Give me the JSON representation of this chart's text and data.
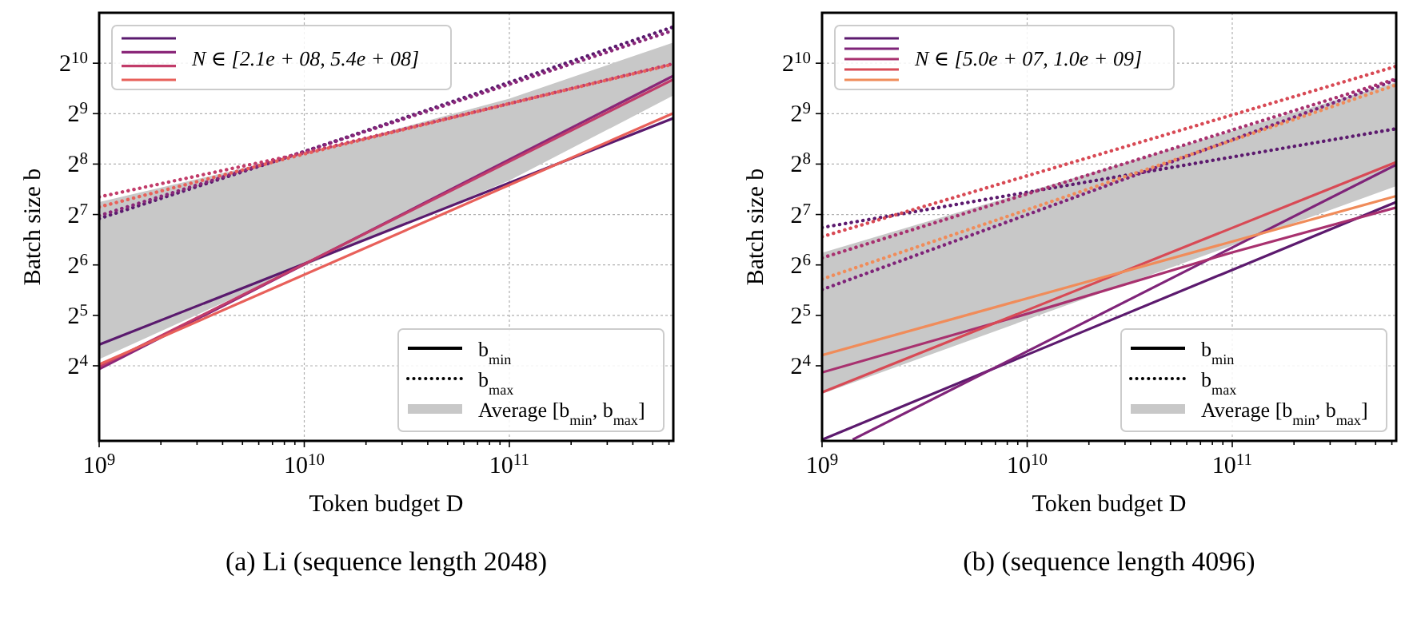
{
  "chart_data": [
    {
      "type": "line",
      "title": "(a) Li (sequence length 2048)",
      "xlabel": "Token budget D",
      "ylabel": "Batch size b",
      "legend": "bottom right",
      "grid": true,
      "log": "xy",
      "xlim": [
        1000000000.0,
        630000000000.0
      ],
      "ylim": [
        5.7,
        2048
      ],
      "xticks": [
        {
          "value": 1000000000.0,
          "label": "10$^{9}$"
        },
        {
          "value": 2000000000.0,
          "label": null
        },
        {
          "value": 3000000000.0,
          "label": null
        },
        {
          "value": 4000000000.0,
          "label": null
        },
        {
          "value": 5000000000.0,
          "label": null
        },
        {
          "value": 6000000000.0,
          "label": null
        },
        {
          "value": 7000000000.0,
          "label": null
        },
        {
          "value": 8000000000.0,
          "label": null
        },
        {
          "value": 9000000000.0,
          "label": null
        },
        {
          "value": 10000000000.0,
          "label": "10$^{10}$"
        },
        {
          "value": 20000000000.0,
          "label": null
        },
        {
          "value": 30000000000.0,
          "label": null
        },
        {
          "value": 40000000000.0,
          "label": null
        },
        {
          "value": 50000000000.0,
          "label": null
        },
        {
          "value": 60000000000.0,
          "label": null
        },
        {
          "value": 70000000000.0,
          "label": null
        },
        {
          "value": 80000000000.0,
          "label": null
        },
        {
          "value": 90000000000.0,
          "label": null
        },
        {
          "value": 100000000000.0,
          "label": "10$^{11}$"
        },
        {
          "value": 200000000000.0,
          "label": null
        },
        {
          "value": 300000000000.0,
          "label": null
        },
        {
          "value": 400000000000.0,
          "label": null
        },
        {
          "value": 500000000000.0,
          "label": null
        },
        {
          "value": 600000000000.0,
          "label": null
        }
      ],
      "yticks": [
        {
          "value": 16,
          "label": "2$^{4}$"
        },
        {
          "value": 32,
          "label": "2$^{5}$"
        },
        {
          "value": 64,
          "label": "2$^{6}$"
        },
        {
          "value": 128,
          "label": "2$^{7}$"
        },
        {
          "value": 256,
          "label": "2$^{8}$"
        },
        {
          "value": 512,
          "label": "2$^{9}$"
        },
        {
          "value": 1024,
          "label": "2$^{10}$"
        }
      ],
      "annotations": [
        "b$_{min}$",
        "b$_{max}$",
        "N ∈ [2.1e + 08, 5.4e + 08]"
      ],
      "series": [
        {
          "name": "Average [b$_{min}$, b$_{max}$]",
          "color": "#c8c8c8",
          "x": [
            1000000000.0,
            10000000000.0,
            100000000000.0,
            630000000000.0
          ],
          "values": [
            null,
            null,
            null,
            null
          ],
          "lower": [
            17.5,
            63.1,
            204,
            657
          ],
          "upper": [
            152,
            294,
            630,
            1361
          ]
        },
        {
          "color": "#5a1a6e",
          "line_style": "solid",
          "x": [
            1000000000.0,
            630000000000.0
          ],
          "values": [
            21.4,
            481
          ]
        },
        {
          "color": "#8a2779",
          "line_style": "solid",
          "x": [
            1000000000.0,
            630000000000.0
          ],
          "values": [
            15.3,
            861
          ]
        },
        {
          "color": "#c23c6a",
          "line_style": "solid",
          "x": [
            1000000000.0,
            630000000000.0
          ],
          "values": [
            15.8,
            820
          ]
        },
        {
          "color": "#e8605a",
          "line_style": "solid",
          "x": [
            1000000000.0,
            630000000000.0
          ],
          "values": [
            16.3,
            515
          ]
        },
        {
          "color": "#5a1a6e",
          "line_style": "dotted",
          "x": [
            1000000000.0,
            10000000000.0,
            630000000000.0
          ],
          "values": [
            121,
            304,
            1687
          ]
        },
        {
          "color": "#8a2779",
          "line_style": "dotted",
          "x": [
            1000000000.0,
            10000000000.0,
            630000000000.0
          ],
          "values": [
            126,
            304,
            1607
          ]
        },
        {
          "color": "#c23c6a",
          "line_style": "dotted",
          "x": [
            1000000000.0,
            10000000000.0,
            100000000000.0,
            630000000000.0
          ],
          "values": [
            163,
            298,
            588,
            1017
          ]
        },
        {
          "color": "#e8605a",
          "line_style": "dotted",
          "x": [
            1000000000.0,
            10000000000.0,
            100000000000.0,
            630000000000.0
          ],
          "values": [
            142,
            294,
            588,
            1010
          ]
        }
      ]
    },
    {
      "type": "line",
      "title": "(b) (sequence length 4096)",
      "xlabel": "Token budget D",
      "ylabel": "Batch size b",
      "legend": "bottom right",
      "grid": true,
      "log": "xy",
      "xlim": [
        1000000000.0,
        630000000000.0
      ],
      "ylim": [
        5.7,
        2048
      ],
      "xticks": [
        {
          "value": 1000000000.0,
          "label": "10$^{9}$"
        },
        {
          "value": 2000000000.0,
          "label": null
        },
        {
          "value": 3000000000.0,
          "label": null
        },
        {
          "value": 4000000000.0,
          "label": null
        },
        {
          "value": 5000000000.0,
          "label": null
        },
        {
          "value": 6000000000.0,
          "label": null
        },
        {
          "value": 7000000000.0,
          "label": null
        },
        {
          "value": 8000000000.0,
          "label": null
        },
        {
          "value": 9000000000.0,
          "label": null
        },
        {
          "value": 10000000000.0,
          "label": "10$^{10}$"
        },
        {
          "value": 20000000000.0,
          "label": null
        },
        {
          "value": 30000000000.0,
          "label": null
        },
        {
          "value": 40000000000.0,
          "label": null
        },
        {
          "value": 50000000000.0,
          "label": null
        },
        {
          "value": 60000000000.0,
          "label": null
        },
        {
          "value": 70000000000.0,
          "label": null
        },
        {
          "value": 80000000000.0,
          "label": null
        },
        {
          "value": 90000000000.0,
          "label": null
        },
        {
          "value": 100000000000.0,
          "label": "10$^{11}$"
        },
        {
          "value": 200000000000.0,
          "label": null
        },
        {
          "value": 300000000000.0,
          "label": null
        },
        {
          "value": 400000000000.0,
          "label": null
        },
        {
          "value": 500000000000.0,
          "label": null
        },
        {
          "value": 600000000000.0,
          "label": null
        }
      ],
      "yticks": [
        {
          "value": 16,
          "label": "2$^{4}$"
        },
        {
          "value": 32,
          "label": "2$^{5}$"
        },
        {
          "value": 64,
          "label": "2$^{6}$"
        },
        {
          "value": 128,
          "label": "2$^{7}$"
        },
        {
          "value": 256,
          "label": "2$^{8}$"
        },
        {
          "value": 512,
          "label": "2$^{9}$"
        },
        {
          "value": 1024,
          "label": "2$^{10}$"
        }
      ],
      "annotations": [
        "b$_{min}$",
        "b$_{max}$",
        "N ∈ [5.0e + 07, 1.0e + 09]"
      ],
      "series": [
        {
          "name": "Average [b$_{min}$, b$_{max}$]",
          "color": "#c8c8c8",
          "x": [
            1000000000.0,
            630000000000.0
          ],
          "values": [
            null,
            null
          ],
          "lower": [
            10.9,
            189
          ],
          "upper": [
            75.6,
            787
          ]
        },
        {
          "color": "#5c1a6e",
          "line_style": "solid",
          "x": [
            1000000000.0,
            630000000000.0
          ],
          "values": [
            5.8,
            152
          ]
        },
        {
          "color": "#7f2479",
          "line_style": "solid",
          "x": [
            1410000000.0,
            630000000000.0
          ],
          "values": [
            5.8,
            254
          ]
        },
        {
          "color": "#a8316f",
          "line_style": "solid",
          "x": [
            1000000000.0,
            10000000000.0,
            100000000000.0,
            630000000000.0
          ],
          "values": [
            14.6,
            32.7,
            76.1,
            141
          ]
        },
        {
          "color": "#d84a55",
          "line_style": "solid",
          "x": [
            1000000000.0,
            630000000000.0
          ],
          "values": [
            11.1,
            263
          ]
        },
        {
          "color": "#f08c5a",
          "line_style": "solid",
          "x": [
            1000000000.0,
            630000000000.0
          ],
          "values": [
            18.5,
            165
          ]
        },
        {
          "color": "#5c1a6e",
          "line_style": "dotted",
          "x": [
            1000000000.0,
            630000000000.0
          ],
          "values": [
            107,
            416
          ]
        },
        {
          "color": "#7f2479",
          "line_style": "dotted",
          "x": [
            1000000000.0,
            630000000000.0
          ],
          "values": [
            45.6,
            815
          ]
        },
        {
          "color": "#a8316f",
          "line_style": "dotted",
          "x": [
            1000000000.0,
            630000000000.0
          ],
          "values": [
            70.5,
            826
          ]
        },
        {
          "color": "#d84a55",
          "line_style": "dotted",
          "x": [
            1000000000.0,
            630000000000.0
          ],
          "values": [
            94.4,
            982
          ]
        },
        {
          "color": "#f08c5a",
          "line_style": "dotted",
          "x": [
            1000000000.0,
            630000000000.0
          ],
          "values": [
            52.7,
            760
          ]
        }
      ]
    }
  ]
}
